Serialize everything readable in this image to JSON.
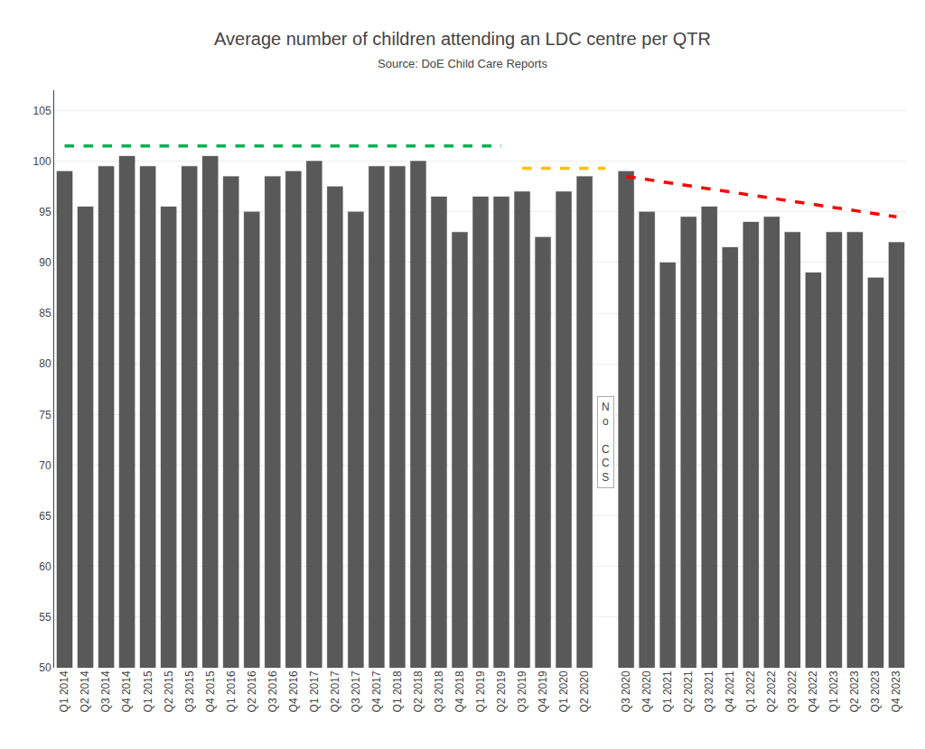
{
  "chart_data": {
    "type": "bar",
    "title": "Average number of children attending an LDC centre per QTR",
    "subtitle": "Source: DoE Child Care Reports",
    "categories": [
      "Q1 2014",
      "Q2 2014",
      "Q3 2014",
      "Q4 2014",
      "Q1 2015",
      "Q2 2015",
      "Q3 2015",
      "Q4 2015",
      "Q1 2016",
      "Q2 2016",
      "Q3 2016",
      "Q4 2016",
      "Q1 2017",
      "Q2 2017",
      "Q3 2017",
      "Q4 2017",
      "Q1 2018",
      "Q2 2018",
      "Q3 2018",
      "Q4 2018",
      "Q1 2019",
      "Q2 2019",
      "Q3 2019",
      "Q4 2019",
      "Q1 2020",
      "Q2 2020",
      null,
      "Q3 2020",
      "Q4 2020",
      "Q1 2021",
      "Q2 2021",
      "Q3 2021",
      "Q4 2021",
      "Q1 2022",
      "Q2 2022",
      "Q3 2022",
      "Q4 2022",
      "Q1 2023",
      "Q2 2023",
      "Q3 2023",
      "Q4 2023"
    ],
    "series": [
      {
        "type": "bar",
        "color": "#595959",
        "values": [
          99.0,
          95.5,
          99.5,
          100.5,
          99.5,
          95.5,
          99.5,
          100.5,
          98.5,
          95.0,
          98.5,
          99.0,
          100.0,
          97.5,
          95.0,
          99.5,
          99.5,
          100.0,
          96.5,
          93.0,
          96.5,
          96.5,
          97.0,
          92.5,
          97.0,
          98.5,
          null,
          99.0,
          95.0,
          90.0,
          94.5,
          95.5,
          91.5,
          94.0,
          94.5,
          93.0,
          89.0,
          93.0,
          93.0,
          88.5,
          92.0
        ]
      },
      {
        "type": "line",
        "color": "#00b050",
        "line_style": "dashed",
        "values": [
          101.5,
          null,
          null,
          null,
          null,
          null,
          null,
          null,
          null,
          null,
          null,
          null,
          null,
          null,
          null,
          null,
          null,
          null,
          null,
          null,
          null,
          101.5,
          null,
          null,
          null,
          null,
          null,
          null,
          null,
          null,
          null,
          null,
          null,
          null,
          null,
          null,
          null,
          null,
          null,
          null,
          null
        ]
      },
      {
        "type": "line",
        "color": "#ffc000",
        "line_style": "dashed",
        "values": [
          null,
          null,
          null,
          null,
          null,
          null,
          null,
          null,
          null,
          null,
          null,
          null,
          null,
          null,
          null,
          null,
          null,
          null,
          null,
          null,
          null,
          null,
          99.3,
          null,
          null,
          null,
          99.3,
          null,
          null,
          null,
          null,
          null,
          null,
          null,
          null,
          null,
          null,
          null,
          null,
          null,
          null
        ]
      },
      {
        "type": "line",
        "color": "#ff0000",
        "line_style": "dashed",
        "values": [
          null,
          null,
          null,
          null,
          null,
          null,
          null,
          null,
          null,
          null,
          null,
          null,
          null,
          null,
          null,
          null,
          null,
          null,
          null,
          null,
          null,
          null,
          null,
          null,
          null,
          null,
          null,
          98.5,
          null,
          null,
          null,
          null,
          null,
          null,
          null,
          null,
          null,
          null,
          null,
          null,
          94.5
        ]
      }
    ],
    "annotation": "N\no\n\nC\nC\nS",
    "ylim": [
      50,
      107
    ],
    "yticks": [
      50,
      55,
      60,
      65,
      70,
      75,
      80,
      85,
      90,
      95,
      100,
      105
    ],
    "grid": true
  }
}
